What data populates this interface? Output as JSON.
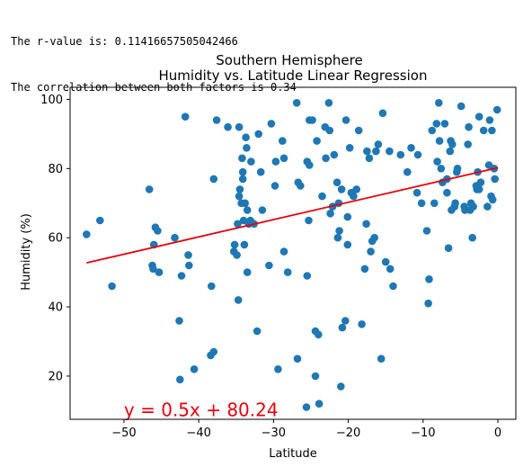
{
  "console": {
    "line1": "The r-value is: 0.11416657505042466",
    "line2": "The correlation between both factors is 0.34"
  },
  "chart_data": {
    "type": "scatter",
    "title_line1": "Southern Hemisphere",
    "title_line2": "Humidity vs. Latitude Linear Regression",
    "xlabel": "Latitude",
    "ylabel": "Humidity (%)",
    "xlim": [
      -57.2,
      2.4
    ],
    "ylim": [
      7.5,
      103.5
    ],
    "xticks": [
      -50,
      -40,
      -30,
      -20,
      -10,
      0
    ],
    "yticks": [
      20,
      40,
      60,
      80,
      100
    ],
    "grid": false,
    "point_color": "#1f77b4",
    "line_color": "#e8000b",
    "regression": {
      "slope": 0.5,
      "intercept": 80.24,
      "x_range": [
        -55,
        0
      ]
    },
    "annotation": {
      "text": "y = 0.5x + 80.24",
      "x": -50,
      "y": 10
    },
    "points": [
      [
        -55,
        61
      ],
      [
        -53.2,
        65
      ],
      [
        -51.6,
        46
      ],
      [
        -46.6,
        74
      ],
      [
        -46.2,
        52
      ],
      [
        -46.1,
        51
      ],
      [
        -46,
        58
      ],
      [
        -45.8,
        63
      ],
      [
        -45.5,
        62
      ],
      [
        -45.3,
        50
      ],
      [
        -43.2,
        60
      ],
      [
        -42.6,
        36
      ],
      [
        -42.5,
        19
      ],
      [
        -42.3,
        49
      ],
      [
        -41.8,
        95
      ],
      [
        -41.4,
        55
      ],
      [
        -41.3,
        52
      ],
      [
        -40.6,
        22
      ],
      [
        -38.3,
        46
      ],
      [
        -38.4,
        26
      ],
      [
        -38,
        27
      ],
      [
        -38,
        77
      ],
      [
        -37.6,
        94
      ],
      [
        -36.1,
        92
      ],
      [
        -35.3,
        56
      ],
      [
        -35.2,
        58
      ],
      [
        -34.9,
        55
      ],
      [
        -34.7,
        42
      ],
      [
        -34.8,
        64
      ],
      [
        -34.6,
        92
      ],
      [
        -34.6,
        72
      ],
      [
        -34.5,
        74
      ],
      [
        -34.3,
        70
      ],
      [
        -34.2,
        83
      ],
      [
        -34.1,
        79
      ],
      [
        -34.1,
        77
      ],
      [
        -34,
        65
      ],
      [
        -33.9,
        58
      ],
      [
        -33.8,
        70
      ],
      [
        -33.7,
        89
      ],
      [
        -33.6,
        86
      ],
      [
        -33.5,
        50
      ],
      [
        -33.5,
        68
      ],
      [
        -33.3,
        64
      ],
      [
        -33.1,
        65
      ],
      [
        -33,
        82
      ],
      [
        -32.6,
        64
      ],
      [
        -32.2,
        33
      ],
      [
        -32,
        90
      ],
      [
        -31.7,
        79
      ],
      [
        -31.5,
        68
      ],
      [
        -30.6,
        52
      ],
      [
        -30.3,
        93
      ],
      [
        -29.8,
        75
      ],
      [
        -29.7,
        82
      ],
      [
        -29.4,
        22
      ],
      [
        -28.8,
        88
      ],
      [
        -28.6,
        83
      ],
      [
        -28.6,
        56
      ],
      [
        -28.1,
        50
      ],
      [
        -26.9,
        99
      ],
      [
        -26.7,
        76
      ],
      [
        -26.4,
        75
      ],
      [
        -25.5,
        49
      ],
      [
        -25.6,
        11
      ],
      [
        -25.5,
        82
      ],
      [
        -25.3,
        65
      ],
      [
        -25.2,
        81
      ],
      [
        -25.2,
        94
      ],
      [
        -24.8,
        94
      ],
      [
        -24.4,
        33
      ],
      [
        -24.4,
        20
      ],
      [
        -24.2,
        88
      ],
      [
        -24,
        32
      ],
      [
        -23.9,
        12
      ],
      [
        -23.5,
        72
      ],
      [
        -23.1,
        92
      ],
      [
        -23,
        83
      ],
      [
        -22.6,
        99
      ],
      [
        -22.5,
        91
      ],
      [
        -22.4,
        67
      ],
      [
        -22.1,
        69
      ],
      [
        -21.9,
        84
      ],
      [
        -21.5,
        76
      ],
      [
        -21.3,
        70
      ],
      [
        -21.4,
        60
      ],
      [
        -21.2,
        62
      ],
      [
        -21,
        17
      ],
      [
        -20.9,
        74
      ],
      [
        -20.8,
        34
      ],
      [
        -20.4,
        36
      ],
      [
        -20.3,
        94
      ],
      [
        -20.1,
        58
      ],
      [
        -19.8,
        86
      ],
      [
        -19.6,
        73
      ],
      [
        -19.3,
        72
      ],
      [
        -18.9,
        74
      ],
      [
        -18.6,
        91
      ],
      [
        -18.2,
        35
      ],
      [
        -17.8,
        51
      ],
      [
        -17.6,
        64
      ],
      [
        -17.5,
        85
      ],
      [
        -17.2,
        83
      ],
      [
        -17,
        56
      ],
      [
        -16.8,
        59
      ],
      [
        -16.5,
        60
      ],
      [
        -16.3,
        85
      ],
      [
        -16,
        87
      ],
      [
        -15.6,
        25
      ],
      [
        -15.4,
        96
      ],
      [
        -15,
        53
      ],
      [
        -14.5,
        85
      ],
      [
        -14.4,
        51
      ],
      [
        -14,
        46
      ],
      [
        -13,
        84
      ],
      [
        -12.1,
        79
      ],
      [
        -11.6,
        86
      ],
      [
        -10.8,
        73
      ],
      [
        -10.7,
        84
      ],
      [
        -10.2,
        70
      ],
      [
        -9.5,
        62
      ],
      [
        -9.3,
        41
      ],
      [
        -9.2,
        48
      ],
      [
        -8.8,
        91
      ],
      [
        -8.5,
        70
      ],
      [
        -8.2,
        93
      ],
      [
        -7.9,
        99
      ],
      [
        -7.8,
        88
      ],
      [
        -7.6,
        80
      ],
      [
        -7.4,
        76
      ],
      [
        -7.1,
        93
      ],
      [
        -6.8,
        77
      ],
      [
        -6.6,
        57
      ],
      [
        -6.4,
        85
      ],
      [
        -6.3,
        88
      ],
      [
        -6.2,
        68
      ],
      [
        -5.8,
        69
      ],
      [
        -5.7,
        70
      ],
      [
        -5.5,
        79
      ],
      [
        -5.4,
        80
      ],
      [
        -4.9,
        98
      ],
      [
        -4.5,
        69
      ],
      [
        -4.4,
        68
      ],
      [
        -4,
        87
      ],
      [
        -3.9,
        92
      ],
      [
        -3.6,
        70
      ],
      [
        -3.4,
        60
      ],
      [
        -3.3,
        69
      ],
      [
        -2.8,
        74
      ],
      [
        -2.7,
        79
      ],
      [
        -2.5,
        95
      ],
      [
        -2.3,
        76
      ],
      [
        -1.9,
        91
      ],
      [
        -1.4,
        69
      ],
      [
        -1.2,
        81
      ],
      [
        -1.1,
        94
      ],
      [
        -0.9,
        72
      ],
      [
        -0.8,
        91
      ],
      [
        -0.7,
        71
      ],
      [
        -0.5,
        80
      ],
      [
        -0.4,
        77
      ],
      [
        -0.1,
        97
      ],
      [
        -2.5,
        74
      ],
      [
        -2.9,
        75
      ],
      [
        -3.7,
        68
      ],
      [
        -6.1,
        87
      ],
      [
        -8.1,
        82
      ],
      [
        -6.8,
        73
      ],
      [
        -20.1,
        66
      ],
      [
        -26.8,
        25
      ]
    ]
  }
}
